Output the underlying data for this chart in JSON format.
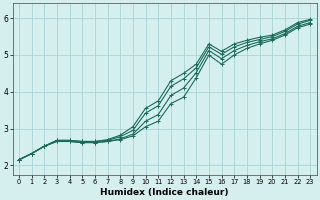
{
  "xlabel": "Humidex (Indice chaleur)",
  "xlim": [
    -0.5,
    23.5
  ],
  "ylim": [
    1.75,
    6.4
  ],
  "xticks": [
    0,
    1,
    2,
    3,
    4,
    5,
    6,
    7,
    8,
    9,
    10,
    11,
    12,
    13,
    14,
    15,
    16,
    17,
    18,
    19,
    20,
    21,
    22,
    23
  ],
  "yticks": [
    2,
    3,
    4,
    5,
    6
  ],
  "bg_color": "#d5eeee",
  "grid_color": "#aad4d4",
  "line_color": "#1a6b5a",
  "lines": [
    {
      "x": [
        0,
        1,
        2,
        3,
        4,
        5,
        6,
        7,
        8,
        9,
        10,
        11,
        12,
        13,
        14,
        15,
        16,
        17,
        18,
        19,
        20,
        21,
        22,
        23
      ],
      "y": [
        2.15,
        2.32,
        2.52,
        2.68,
        2.68,
        2.65,
        2.65,
        2.7,
        2.82,
        3.05,
        3.55,
        3.75,
        4.3,
        4.5,
        4.75,
        5.3,
        5.1,
        5.3,
        5.4,
        5.48,
        5.54,
        5.68,
        5.88,
        5.97
      ]
    },
    {
      "x": [
        0,
        1,
        2,
        3,
        4,
        5,
        6,
        7,
        8,
        9,
        10,
        11,
        12,
        13,
        14,
        15,
        16,
        17,
        18,
        19,
        20,
        21,
        22,
        23
      ],
      "y": [
        2.15,
        2.32,
        2.52,
        2.68,
        2.68,
        2.65,
        2.65,
        2.68,
        2.78,
        2.95,
        3.42,
        3.62,
        4.15,
        4.35,
        4.65,
        5.22,
        5.02,
        5.22,
        5.34,
        5.42,
        5.5,
        5.64,
        5.84,
        5.94
      ]
    },
    {
      "x": [
        0,
        1,
        2,
        3,
        4,
        5,
        6,
        7,
        8,
        9,
        10,
        11,
        12,
        13,
        14,
        15,
        16,
        17,
        18,
        19,
        20,
        21,
        22,
        23
      ],
      "y": [
        2.15,
        2.32,
        2.52,
        2.65,
        2.65,
        2.62,
        2.62,
        2.65,
        2.72,
        2.85,
        3.2,
        3.38,
        3.9,
        4.1,
        4.52,
        5.12,
        4.9,
        5.12,
        5.26,
        5.36,
        5.44,
        5.58,
        5.78,
        5.88
      ]
    },
    {
      "x": [
        0,
        1,
        2,
        3,
        4,
        5,
        6,
        7,
        8,
        9,
        10,
        11,
        12,
        13,
        14,
        15,
        16,
        17,
        18,
        19,
        20,
        21,
        22,
        23
      ],
      "y": [
        2.15,
        2.32,
        2.52,
        2.65,
        2.65,
        2.62,
        2.62,
        2.65,
        2.7,
        2.8,
        3.05,
        3.2,
        3.68,
        3.85,
        4.38,
        5.0,
        4.75,
        5.0,
        5.18,
        5.3,
        5.4,
        5.54,
        5.74,
        5.84
      ]
    }
  ]
}
